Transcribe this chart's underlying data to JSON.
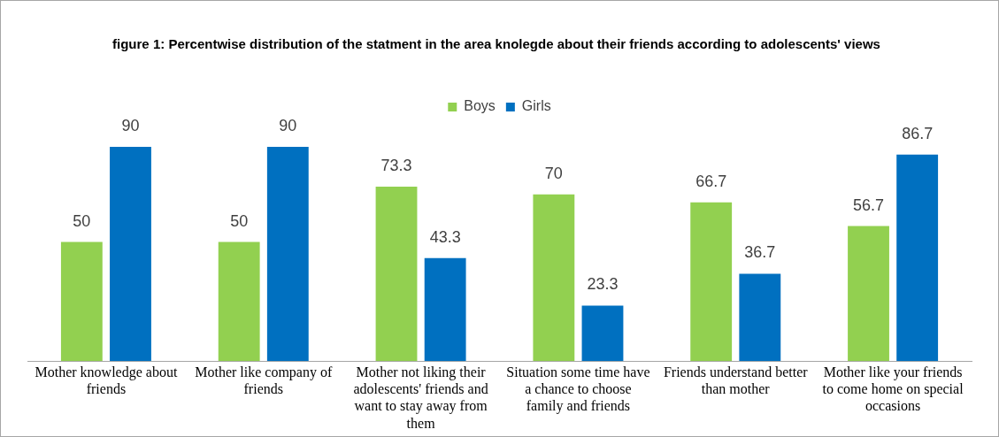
{
  "chart_data": {
    "type": "bar",
    "title": "figure 1: Percentwise distribution  of the statment in the area knolegde about their friends  according to adolescents' views",
    "categories": [
      "Mother knowledge about friends",
      "Mother like company of friends",
      "Mother not liking their adolescents' friends and want to stay away from them",
      "Situation some time have a chance to choose family and friends",
      "Friends understand better than mother",
      "Mother like your friends to come home on special occasions"
    ],
    "series": [
      {
        "name": "Boys",
        "color": "#92d050",
        "values": [
          50,
          50,
          73.3,
          70,
          66.7,
          56.7
        ]
      },
      {
        "name": "Girls",
        "color": "#0070c0",
        "values": [
          90,
          90,
          43.3,
          23.3,
          36.7,
          86.7
        ]
      }
    ],
    "data_labels": true,
    "legend": "top",
    "grid": false,
    "tick_labels": "x"
  }
}
